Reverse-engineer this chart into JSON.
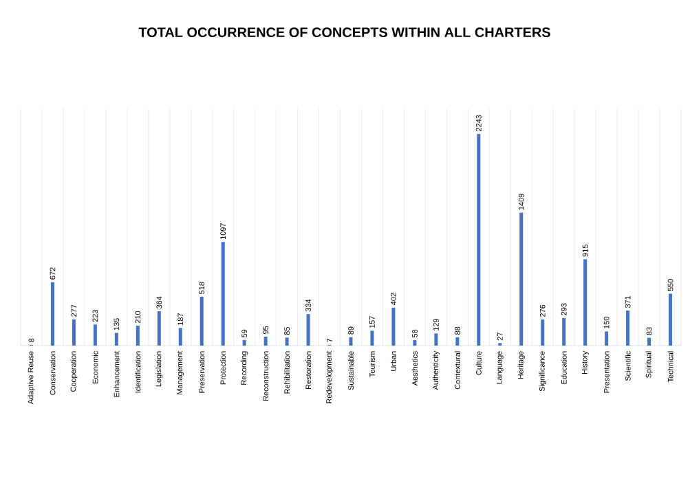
{
  "chart_data": {
    "type": "bar",
    "title": "TOTAL OCCURRENCE OF CONCEPTS WITHIN ALL CHARTERS",
    "categories": [
      "Adaptive Reuse",
      "Conservation",
      "Cooperation",
      "Economic",
      "Enhancement",
      "Identification",
      "Legislation",
      "Management",
      "Preservation",
      "Protection",
      "Recording",
      "Reconstruction",
      "Rehibilitation",
      "Restoration",
      "Redevelopment",
      "Sustainable",
      "Tourism",
      "Urban",
      "Aesthetics",
      "Authenticity",
      "Contextural",
      "Culture",
      "Language",
      "Heritage",
      "Significance",
      "Education",
      "History",
      "Presentation",
      "Scientific",
      "Spiritual",
      "Technical"
    ],
    "values": [
      8,
      672,
      277,
      223,
      135,
      210,
      364,
      187,
      518,
      1097,
      59,
      95,
      85,
      334,
      7,
      89,
      157,
      402,
      58,
      129,
      88,
      2243,
      27,
      1409,
      276,
      293,
      915,
      150,
      371,
      83,
      550
    ],
    "color": "#4472c4",
    "data_labels": true,
    "grid": "x"
  }
}
